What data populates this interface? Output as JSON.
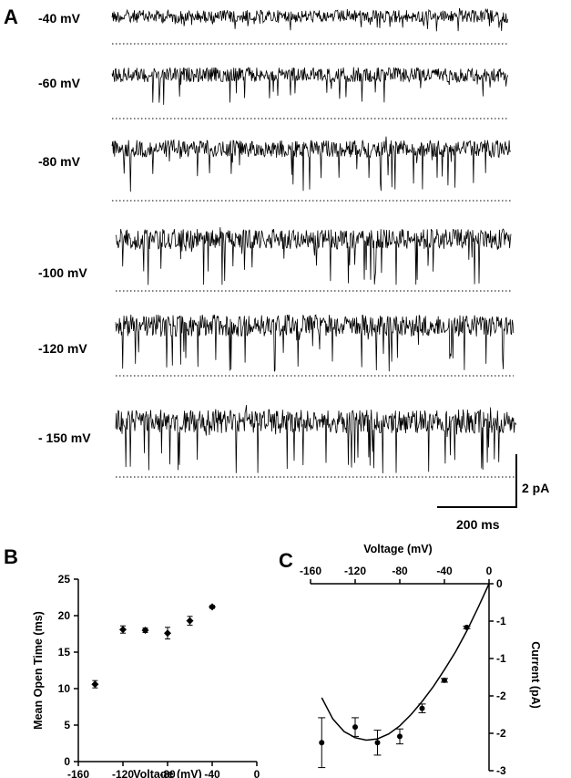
{
  "chart_data": [
    {
      "panel": "A",
      "type": "line",
      "traces": [
        {
          "label": "-40 mV",
          "events": 14,
          "depth": 0.55
        },
        {
          "label": "-60 mV",
          "events": 20,
          "depth": 0.7
        },
        {
          "label": "-80 mV",
          "events": 26,
          "depth": 0.85
        },
        {
          "label": "-100 mV",
          "events": 30,
          "depth": 0.9
        },
        {
          "label": "-120 mV",
          "events": 32,
          "depth": 0.92
        },
        {
          "label": "- 150 mV",
          "events": 34,
          "depth": 0.95
        }
      ],
      "scale_bar": {
        "current": "2 pA",
        "time": "200 ms"
      }
    },
    {
      "panel": "B",
      "type": "scatter",
      "x": [
        -145,
        -120,
        -100,
        -80,
        -60,
        -40
      ],
      "y": [
        10.6,
        18.1,
        18.0,
        17.6,
        19.3,
        21.2
      ],
      "yerr": [
        0.5,
        0.5,
        0.3,
        0.8,
        0.6,
        0.2
      ],
      "xlabel": "Voltage (mV)",
      "ylabel": "Mean Open Time (ms)",
      "xlim": [
        -160,
        0
      ],
      "ylim": [
        0,
        25
      ],
      "xticks": [
        "-160",
        "-120",
        "-80",
        "-40",
        "0"
      ],
      "yticks": [
        "0",
        "5",
        "10",
        "15",
        "20",
        "25"
      ]
    },
    {
      "panel": "C",
      "type": "scatter",
      "x": [
        -150,
        -120,
        -100,
        -80,
        -60,
        -40,
        -20
      ],
      "y": [
        -2.55,
        -2.3,
        -2.55,
        -2.45,
        -2.0,
        -1.55,
        -0.7
      ],
      "yerr": [
        0.4,
        0.15,
        0.2,
        0.12,
        0.07,
        0.03,
        0.02
      ],
      "fit_x": [
        -150,
        -140,
        -130,
        -120,
        -110,
        -100,
        -90,
        -80,
        -70,
        -60,
        -50,
        -40,
        -30,
        -20,
        -10,
        0
      ],
      "fit_y": [
        -1.83,
        -2.17,
        -2.37,
        -2.47,
        -2.51,
        -2.49,
        -2.41,
        -2.28,
        -2.1,
        -1.89,
        -1.65,
        -1.38,
        -1.09,
        -0.76,
        -0.39,
        0
      ],
      "xlabel": "Voltage (mV)",
      "ylabel": "Current (pA)",
      "xlim": [
        -160,
        0
      ],
      "ylim": [
        -3,
        0
      ],
      "xticks": [
        "-160",
        "-120",
        "-80",
        "-40",
        "0"
      ],
      "yticks": [
        "0",
        "-1",
        "-1",
        "-2",
        "-2",
        "-3"
      ]
    }
  ],
  "panels": {
    "a": "A",
    "b": "B",
    "c": "C"
  }
}
